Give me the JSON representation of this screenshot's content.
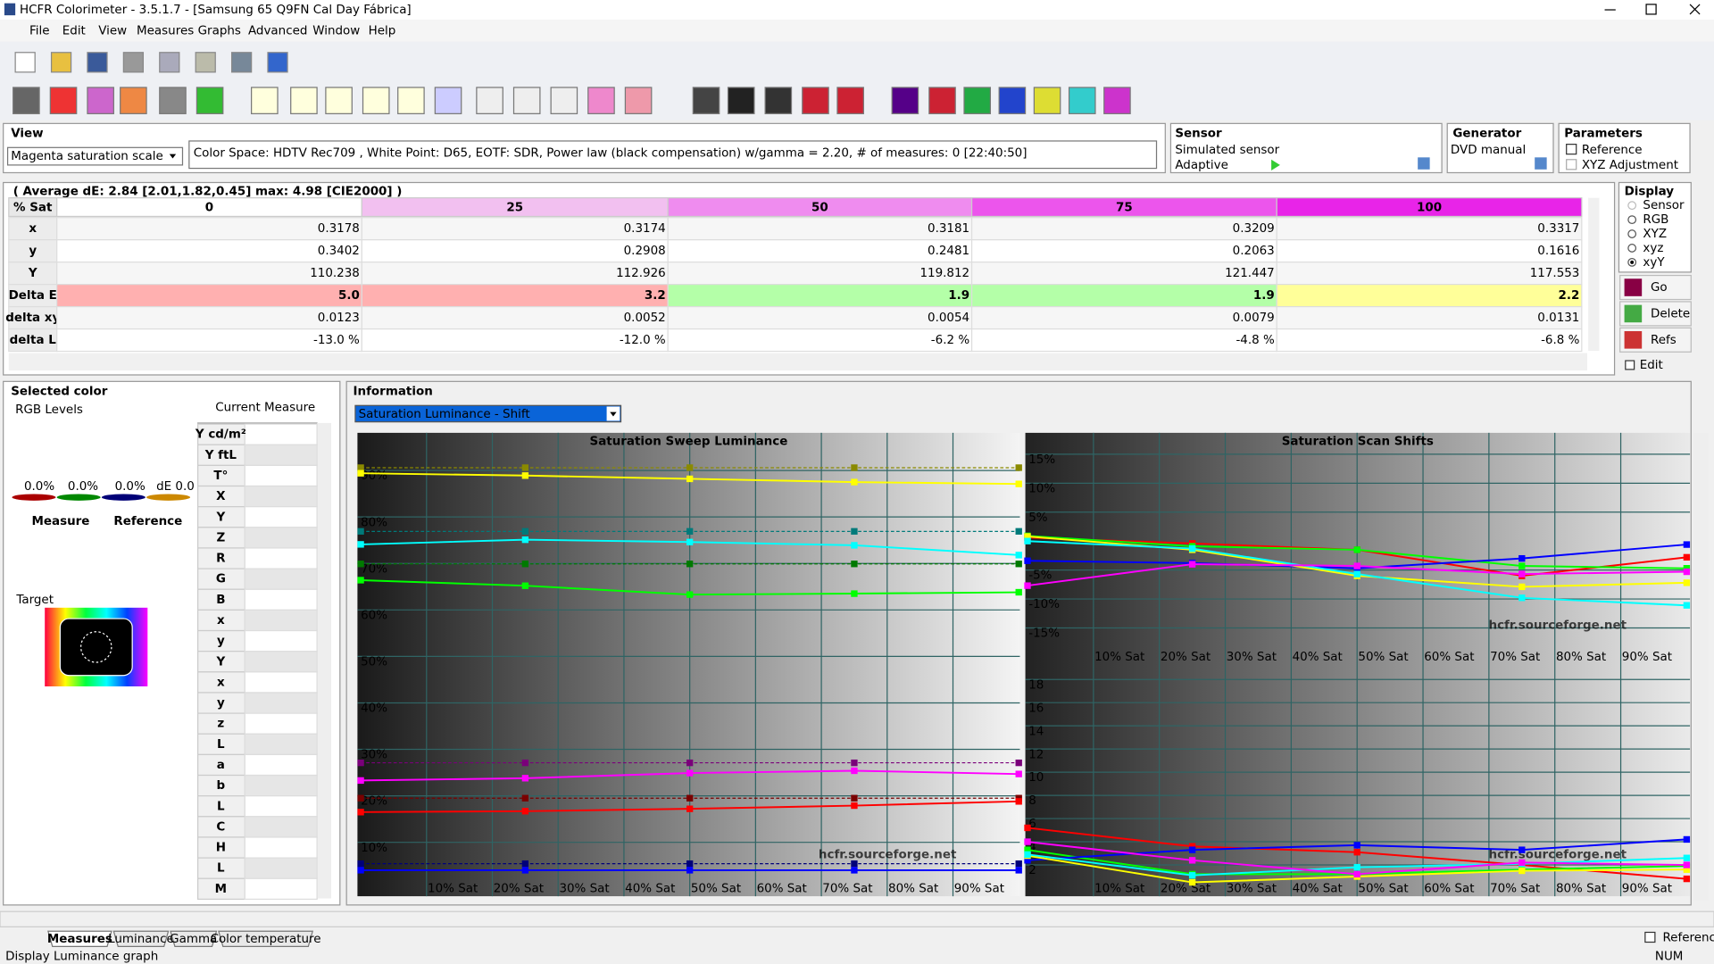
{
  "window": {
    "title": "HCFR Colorimeter - 3.5.1.7 - [Samsung 65 Q9FN Cal Day Fábrica]"
  },
  "menu": [
    "File",
    "Edit",
    "View",
    "Measures",
    "Graphs",
    "Advanced",
    "Window",
    "Help"
  ],
  "view": {
    "label": "View",
    "dropdown": "Magenta saturation scale",
    "info": "Color Space: HDTV Rec709 , White Point: D65, EOTF:  SDR, Power law (black compensation) w/gamma = 2.20, # of measures: 0 [22:40:50]"
  },
  "sensor": {
    "label": "Sensor",
    "name": "Simulated sensor",
    "mode": "Adaptive"
  },
  "generator": {
    "label": "Generator",
    "name": "DVD manual"
  },
  "parameters": {
    "label": "Parameters",
    "options": [
      "Reference",
      "XYZ Adjustment"
    ]
  },
  "display": {
    "label": "Display",
    "options": [
      "Sensor",
      "RGB",
      "XYZ",
      "xyz",
      "xyY"
    ],
    "buttons": [
      "Go",
      "Delete",
      "Refs"
    ],
    "edit": "Edit"
  },
  "table": {
    "summary": "( Average dE: 2.84 [2.01,1.82,0.45] max: 4.98 [CIE2000] )",
    "header": [
      "% Sat",
      "0",
      "25",
      "50",
      "75",
      "100"
    ],
    "rows": [
      [
        "x",
        "0.3178",
        "0.3174",
        "0.3181",
        "0.3209",
        "0.3317"
      ],
      [
        "y",
        "0.3402",
        "0.2908",
        "0.2481",
        "0.2063",
        "0.1616"
      ],
      [
        "Y",
        "110.238",
        "112.926",
        "119.812",
        "121.447",
        "117.553"
      ],
      [
        "Delta E",
        "5.0",
        "3.2",
        "1.9",
        "1.9",
        "2.2"
      ],
      [
        "delta xy",
        "0.0123",
        "0.0052",
        "0.0054",
        "0.0079",
        "0.0131"
      ],
      [
        "delta L",
        "-13.0 %",
        "-12.0 %",
        "-6.2 %",
        "-4.8 %",
        "-6.8 %"
      ]
    ]
  },
  "selected": {
    "label": "Selected color",
    "rgb_levels": "RGB Levels",
    "current_measure": "Current Measure",
    "levels": [
      "0.0%",
      "0.0%",
      "0.0%",
      "dE 0.0"
    ],
    "measure": "Measure",
    "reference": "Reference",
    "target": "Target",
    "rows": [
      "Y cd/m²",
      "Y ftL",
      "T°",
      "X",
      "Y",
      "Z",
      "R",
      "G",
      "B",
      "x",
      "y",
      "Y",
      "x",
      "y",
      "z",
      "L",
      "a",
      "b",
      "L",
      "C",
      "H",
      "L",
      "M"
    ]
  },
  "information": {
    "label": "Information",
    "dropdown": "Saturation Luminance - Shift",
    "watermark": "hcfr.sourceforge.net",
    "charts": [
      {
        "type": "line",
        "title": "Saturation Sweep Luminance",
        "x": [
          0,
          25,
          50,
          75,
          100
        ],
        "xlim": [
          0,
          100
        ],
        "ylim": [
          -1.6,
          98.1
        ],
        "xticks": [
          {
            "value": 10,
            "label": "10% Sat"
          },
          {
            "value": 20,
            "label": "20% Sat"
          },
          {
            "value": 30,
            "label": "30% Sat"
          },
          {
            "value": 40,
            "label": "40% Sat"
          },
          {
            "value": 50,
            "label": "50% Sat"
          },
          {
            "value": 60,
            "label": "60% Sat"
          },
          {
            "value": 70,
            "label": "70% Sat"
          },
          {
            "value": 80,
            "label": "80% Sat"
          },
          {
            "value": 90,
            "label": "90% Sat"
          }
        ],
        "yticks": [
          {
            "value": 10,
            "label": "10%"
          },
          {
            "value": 20,
            "label": "20%"
          },
          {
            "value": 30,
            "label": "30%"
          },
          {
            "value": 40,
            "label": "40%"
          },
          {
            "value": 50,
            "label": "50%"
          },
          {
            "value": 60,
            "label": "60%"
          },
          {
            "value": 70,
            "label": "70%"
          },
          {
            "value": 80,
            "label": "80%"
          },
          {
            "value": 90,
            "label": "90%"
          }
        ],
        "series": [
          {
            "color": "#8a8a00",
            "dashed": true,
            "values": [
              90.6,
              90.6,
              90.6,
              90.6,
              90.6
            ]
          },
          {
            "color": "#007a7a",
            "dashed": true,
            "values": [
              76.9,
              76.9,
              76.9,
              76.9,
              76.9
            ]
          },
          {
            "color": "#007a00",
            "dashed": true,
            "values": [
              69.9,
              69.9,
              69.9,
              69.9,
              69.9
            ]
          },
          {
            "color": "#7a007a",
            "dashed": true,
            "values": [
              27.1,
              27.1,
              27.1,
              27.1,
              27.1
            ]
          },
          {
            "color": "#7a0000",
            "dashed": true,
            "values": [
              19.5,
              19.5,
              19.5,
              19.5,
              19.5
            ]
          },
          {
            "color": "#00007a",
            "dashed": true,
            "values": [
              5.4,
              5.4,
              5.4,
              5.4,
              5.4
            ]
          },
          {
            "color": "#ffff00",
            "values": [
              89.4,
              88.9,
              88.2,
              87.5,
              87.1
            ]
          },
          {
            "color": "#00ffff",
            "values": [
              74.1,
              75.1,
              74.6,
              73.9,
              71.8
            ]
          },
          {
            "color": "#00ff00",
            "values": [
              66.4,
              65.2,
              63.3,
              63.5,
              63.8
            ]
          },
          {
            "color": "#ff00ff",
            "values": [
              23.3,
              23.8,
              24.9,
              25.4,
              24.7
            ]
          },
          {
            "color": "#ff0000",
            "values": [
              16.5,
              16.7,
              17.2,
              17.9,
              18.8
            ]
          },
          {
            "color": "#0000ff",
            "values": [
              4.0,
              4.0,
              4.0,
              4.0,
              4.0
            ]
          }
        ]
      },
      {
        "type": "line",
        "title": "Saturation Scan Shifts",
        "x": [
          0,
          25,
          50,
          75,
          100
        ],
        "xlim": [
          0,
          100
        ],
        "ylim": [
          -21.7,
          18.7
        ],
        "xticks": [
          {
            "value": 10,
            "label": "10% Sat"
          },
          {
            "value": 20,
            "label": "20% Sat"
          },
          {
            "value": 30,
            "label": "30% Sat"
          },
          {
            "value": 40,
            "label": "40% Sat"
          },
          {
            "value": 50,
            "label": "50% Sat"
          },
          {
            "value": 60,
            "label": "60% Sat"
          },
          {
            "value": 70,
            "label": "70% Sat"
          },
          {
            "value": 80,
            "label": "80% Sat"
          },
          {
            "value": 90,
            "label": "90% Sat"
          }
        ],
        "yticks": [
          {
            "value": 15,
            "label": "15%"
          },
          {
            "value": 10,
            "label": "10%"
          },
          {
            "value": 5,
            "label": "5%"
          },
          {
            "value": -5,
            "label": "-5%"
          },
          {
            "value": -10,
            "label": "-10%"
          },
          {
            "value": -15,
            "label": "-15%"
          }
        ],
        "series": [
          {
            "color": "#ff0000",
            "values": [
              0.6,
              -0.4,
              -1.5,
              -6.0,
              -2.8
            ]
          },
          {
            "color": "#00ff00",
            "values": [
              0.9,
              -0.9,
              -1.5,
              -4.3,
              -4.7
            ]
          },
          {
            "color": "#0000ff",
            "values": [
              -3.4,
              -3.8,
              -4.7,
              -3.0,
              -0.6
            ]
          },
          {
            "color": "#ffff00",
            "values": [
              0.8,
              -1.5,
              -6.0,
              -7.9,
              -7.2
            ]
          },
          {
            "color": "#00ffff",
            "values": [
              0,
              -1.3,
              -5.7,
              -9.8,
              -11.1
            ]
          },
          {
            "color": "#ff00ff",
            "values": [
              -7.7,
              -4.0,
              -4.3,
              -5.7,
              -5.3
            ]
          }
        ]
      },
      {
        "type": "line",
        "x": [
          0,
          25,
          50,
          75,
          100
        ],
        "xlim": [
          0,
          100
        ],
        "ylim": [
          -0.7,
          19.1
        ],
        "xticks": [
          {
            "value": 10,
            "label": "10% Sat"
          },
          {
            "value": 20,
            "label": "20% Sat"
          },
          {
            "value": 30,
            "label": "30% Sat"
          },
          {
            "value": 40,
            "label": "40% Sat"
          },
          {
            "value": 50,
            "label": "50% Sat"
          },
          {
            "value": 60,
            "label": "60% Sat"
          },
          {
            "value": 70,
            "label": "70% Sat"
          },
          {
            "value": 80,
            "label": "80% Sat"
          },
          {
            "value": 90,
            "label": "90% Sat"
          }
        ],
        "yticks": [
          2,
          4,
          6,
          8,
          10,
          12,
          14,
          16,
          18
        ],
        "series": [
          {
            "color": "#ff0000",
            "values": [
              5.2,
              3.6,
              3.1,
              2.0,
              0.8
            ]
          },
          {
            "color": "#00ff00",
            "values": [
              3.3,
              1.2,
              1.2,
              1.6,
              1.9
            ]
          },
          {
            "color": "#0000ff",
            "values": [
              2.4,
              3.3,
              3.7,
              3.3,
              4.2
            ]
          },
          {
            "color": "#ffff00",
            "values": [
              2.8,
              0.5,
              1.0,
              1.5,
              1.6
            ]
          },
          {
            "color": "#00ffff",
            "values": [
              2.9,
              1.1,
              1.8,
              2.1,
              2.6
            ]
          },
          {
            "color": "#ff00ff",
            "values": [
              4.0,
              2.4,
              1.2,
              2.2,
              2.0
            ]
          }
        ]
      }
    ]
  },
  "tabs": [
    "Measures",
    "Luminance",
    "Gamma",
    "Color temperature"
  ],
  "status": {
    "text": "Display Luminance graph",
    "num": "NUM",
    "reference": "Reference"
  }
}
